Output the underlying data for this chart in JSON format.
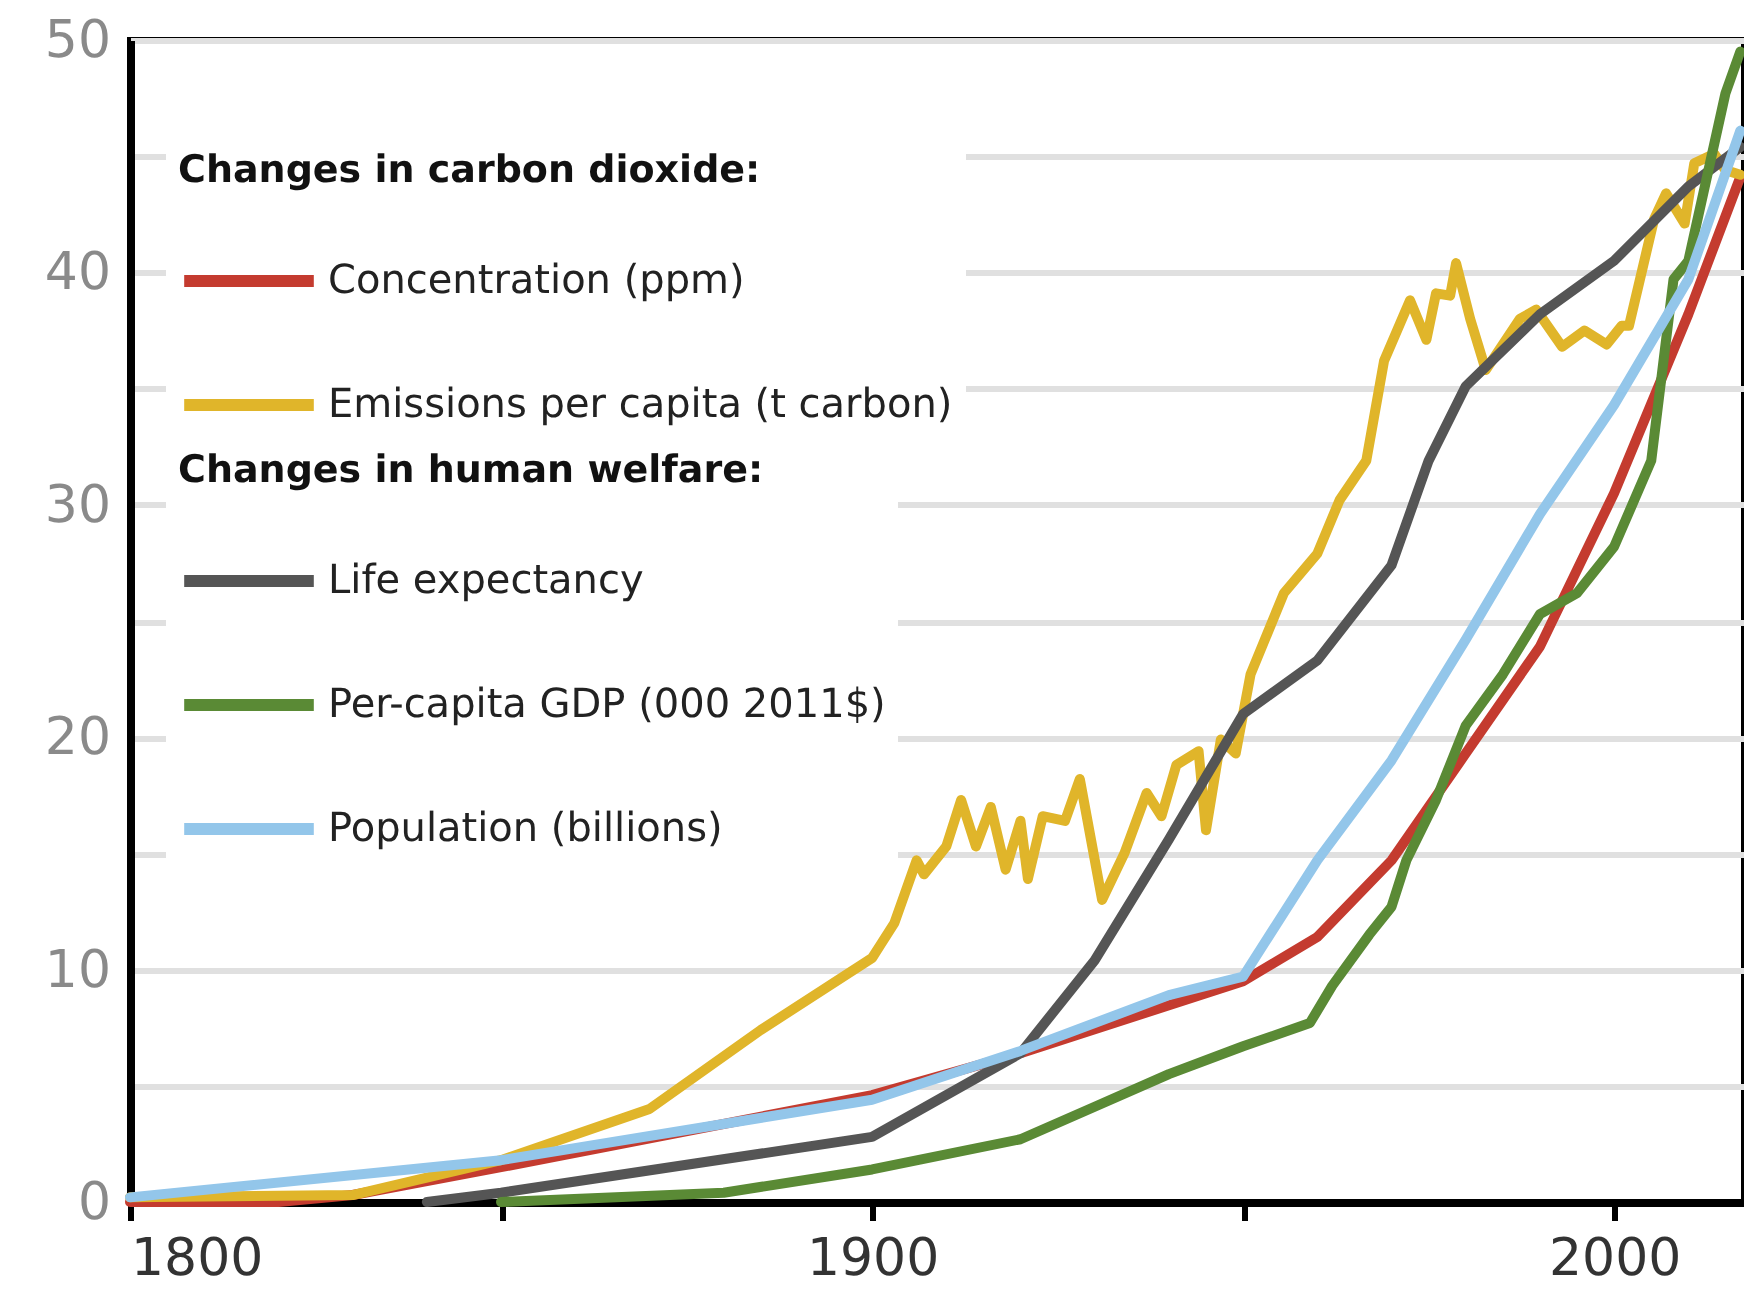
{
  "chart_data": {
    "type": "line",
    "annotations": [
      "Changes in carbon dioxide:",
      "Changes in human welfare:"
    ],
    "xlim": [
      1800,
      2017.5
    ],
    "xticks": [
      1800,
      {
        "value": 1850,
        "label": null
      },
      1900,
      {
        "value": 1950,
        "label": null
      },
      2000
    ],
    "ylim": [
      0,
      50
    ],
    "yticks": [
      0,
      {
        "value": 5,
        "label": null
      },
      10,
      {
        "value": 15,
        "label": null
      },
      20,
      {
        "value": 25,
        "label": null
      },
      30,
      {
        "value": 35,
        "label": null
      },
      40,
      {
        "value": 45,
        "label": null
      },
      50
    ],
    "grid": "y",
    "legend": "top left",
    "line_style": "solid",
    "marker": "none",
    "series": [
      {
        "name": "Concentration (ppm)",
        "color": "#c43b2f",
        "x": [
          1800,
          1820,
          1830,
          1850,
          1900,
          1920,
          1950,
          1960,
          1970,
          1980,
          1990,
          2000,
          2010,
          2017
        ],
        "values": [
          0,
          0,
          0.3,
          1.5,
          4.6,
          6.4,
          9.5,
          11.4,
          14.7,
          19.3,
          23.9,
          30.5,
          38.2,
          44.1
        ]
      },
      {
        "name": "Emissions per capita (t carbon)",
        "color": "#e0b52a",
        "x": [
          1800,
          1830,
          1850,
          1870,
          1885,
          1900,
          1901,
          1903,
          1906,
          1907,
          1910,
          1912,
          1914,
          1916,
          1918,
          1920,
          1921,
          1923,
          1926,
          1928,
          1931,
          1934,
          1937,
          1939,
          1941,
          1944,
          1945,
          1947,
          1949,
          1951,
          1955.5,
          1960,
          1963,
          1966.6,
          1969,
          1972.5,
          1974.7,
          1976,
          1977.9,
          1978.7,
          1980.6,
          1982.7,
          1987.3,
          1989.5,
          1993,
          1996,
          1999,
          2001,
          2002,
          2005.4,
          2007,
          2009.5,
          2010.8,
          2013.5,
          2015,
          2017
        ],
        "values": [
          0.2,
          0.3,
          1.8,
          4,
          7.4,
          10.5,
          11.0,
          12.0,
          14.7,
          14.1,
          15.3,
          17.3,
          15.3,
          17.0,
          14.3,
          16.4,
          13.9,
          16.6,
          16.4,
          18.2,
          13.0,
          15.0,
          17.6,
          16.6,
          18.8,
          19.4,
          16.0,
          19.9,
          19.3,
          22.7,
          26.2,
          27.9,
          30.2,
          31.9,
          36.2,
          38.8,
          37.1,
          39.1,
          39.0,
          40.4,
          38.0,
          35.8,
          38.0,
          38.4,
          36.8,
          37.5,
          36.9,
          37.7,
          37.7,
          42.3,
          43.4,
          42.1,
          44.7,
          45.1,
          44.4,
          44.2
        ]
      },
      {
        "name": "Life expectancy",
        "color": "#555555",
        "x": [
          1840,
          1850,
          1900,
          1920,
          1930,
          1940,
          1950,
          1960,
          1970,
          1975,
          1980,
          1990,
          2000,
          2010,
          2017
        ],
        "values": [
          0,
          0.4,
          2.8,
          6.4,
          10.4,
          15.6,
          21.0,
          23.3,
          27.4,
          31.9,
          35.1,
          38.2,
          40.5,
          43.7,
          45.4
        ]
      },
      {
        "name": "Per-capita GDP (000 2011$)",
        "color": "#5a8a35",
        "x": [
          1850,
          1880,
          1900,
          1920,
          1930,
          1940,
          1950,
          1959,
          1962,
          1967,
          1970,
          1972,
          1976,
          1980,
          1985,
          1990,
          1995,
          2000,
          2005,
          2008,
          2010,
          2015,
          2017
        ],
        "values": [
          0,
          0.4,
          1.4,
          2.7,
          4.1,
          5.5,
          6.7,
          7.7,
          9.3,
          11.5,
          12.7,
          14.7,
          17.3,
          20.5,
          22.7,
          25.3,
          26.2,
          28.2,
          31.9,
          39.7,
          40.5,
          47.7,
          49.5
        ]
      },
      {
        "name": "Population (billions)",
        "color": "#93c6ea",
        "x": [
          1800,
          1850,
          1900,
          1920,
          1940,
          1950,
          1960,
          1970,
          1980,
          1990,
          2000,
          2010,
          2017
        ],
        "values": [
          0.2,
          1.8,
          4.4,
          6.5,
          8.9,
          9.7,
          14.7,
          19.0,
          24.2,
          29.6,
          34.3,
          39.7,
          46.1
        ]
      }
    ]
  }
}
